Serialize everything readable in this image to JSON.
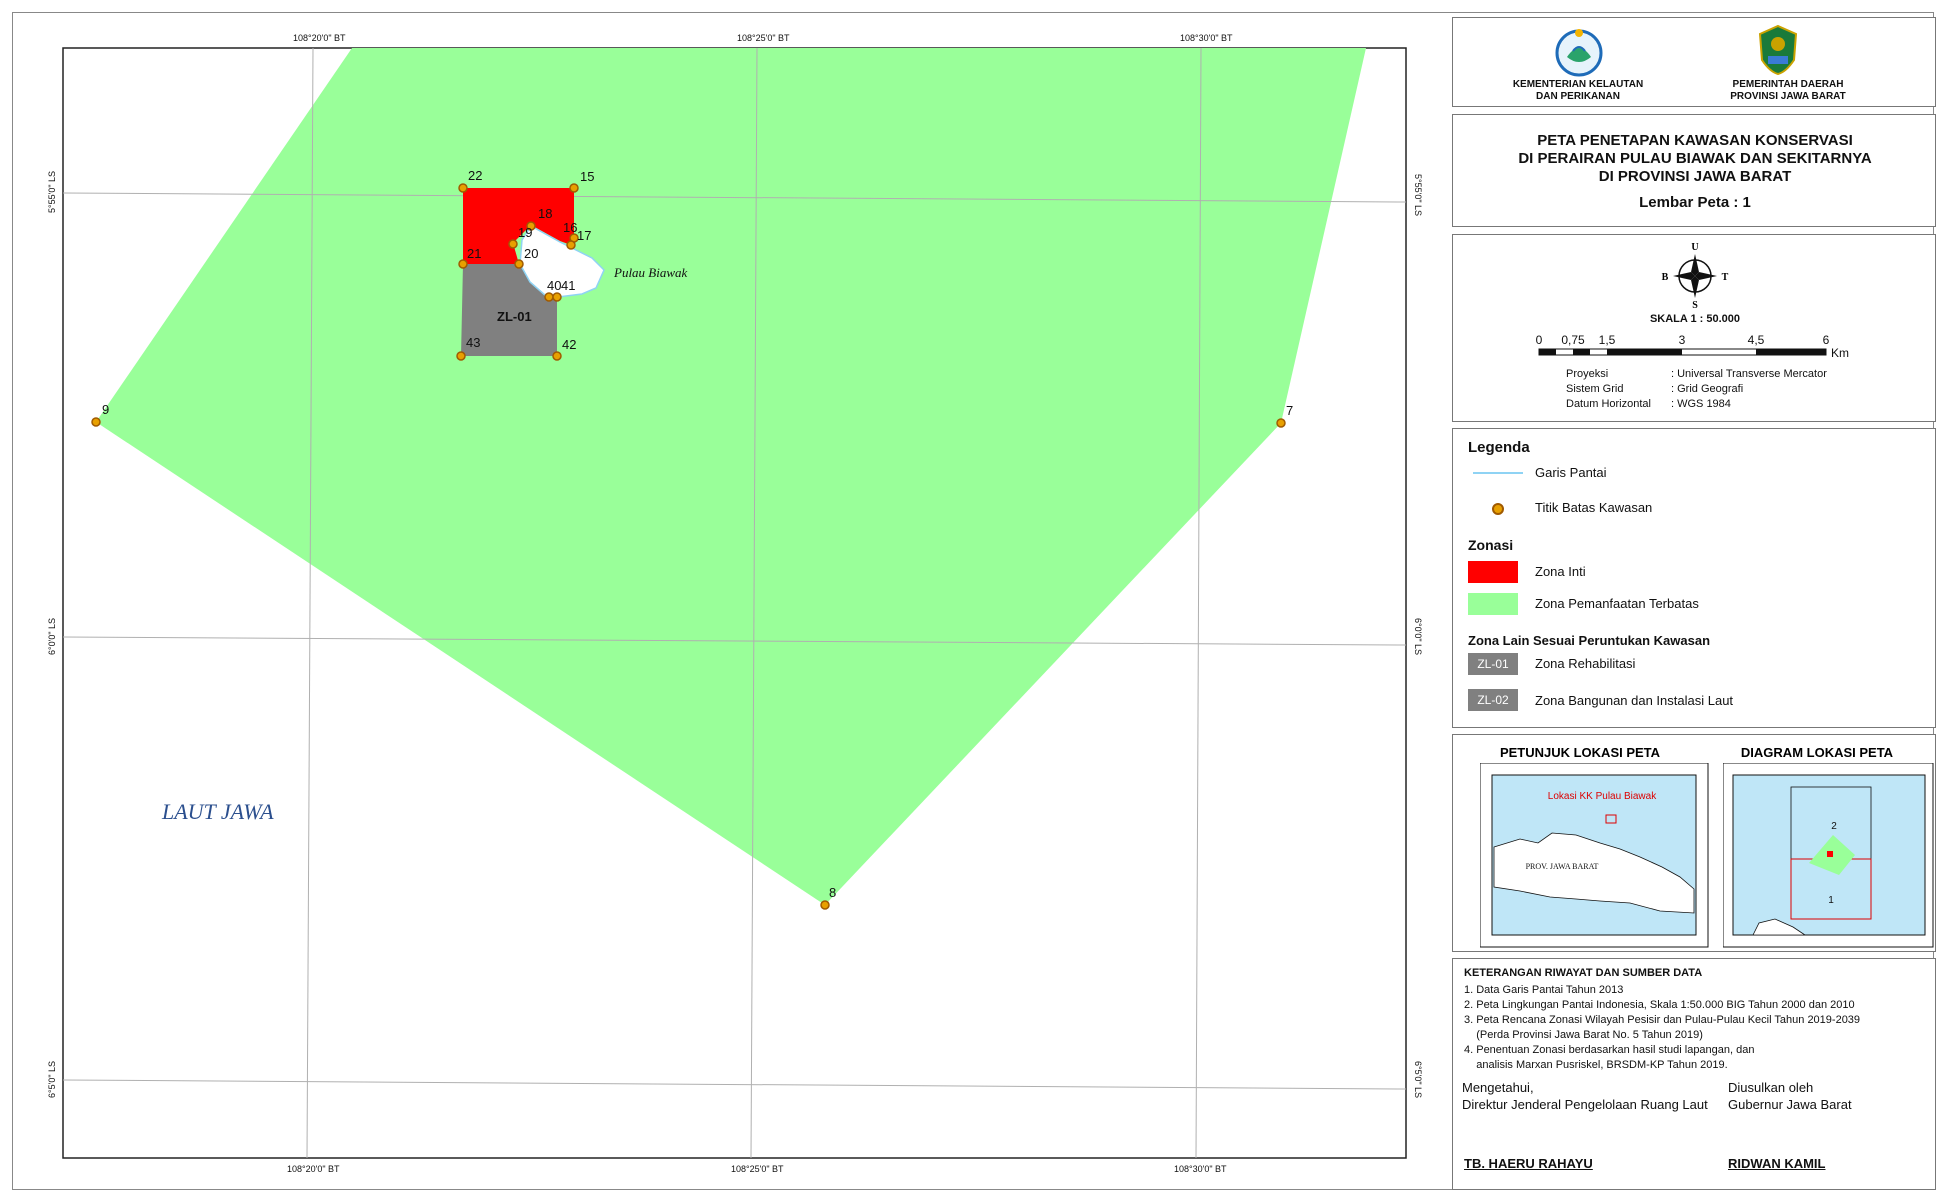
{
  "map": {
    "lon_labels": [
      "108°20'0\" BT",
      "108°25'0\" BT",
      "108°30'0\" BT"
    ],
    "lat_labels": [
      "5°55'0\" LS",
      "6°0'0\" LS",
      "6°5'0\" LS"
    ],
    "sea_label": "LAUT JAWA",
    "island_label": "Pulau Biawak",
    "zone_label": "ZL-01",
    "points": [
      {
        "id": "22"
      },
      {
        "id": "15"
      },
      {
        "id": "18"
      },
      {
        "id": "16"
      },
      {
        "id": "17"
      },
      {
        "id": "19"
      },
      {
        "id": "20"
      },
      {
        "id": "21"
      },
      {
        "id": "40"
      },
      {
        "id": "41"
      },
      {
        "id": "43"
      },
      {
        "id": "42"
      },
      {
        "id": "9"
      },
      {
        "id": "7"
      },
      {
        "id": "8"
      }
    ],
    "colors": {
      "inti": "#ff0000",
      "pemanfaatan": "#99ff99",
      "rehab": "#808080",
      "coast": "#8fd3f4",
      "point": "#e8a000"
    }
  },
  "header": {
    "logo_left_line1": "KEMENTERIAN KELAUTAN",
    "logo_left_line2": "DAN PERIKANAN",
    "logo_right_line1": "PEMERINTAH DAERAH",
    "logo_right_line2": "PROVINSI JAWA BARAT"
  },
  "title": {
    "line1": "PETA PENETAPAN KAWASAN KONSERVASI",
    "line2": "DI PERAIRAN PULAU BIAWAK DAN SEKITARNYA",
    "line3": "DI PROVINSI JAWA BARAT",
    "sheet": "Lembar Peta : 1"
  },
  "scale": {
    "compass": {
      "n": "U",
      "s": "S",
      "e": "T",
      "w": "B"
    },
    "scale_text": "SKALA 1 : 50.000",
    "ticks": [
      "0",
      "0,75",
      "1,5",
      "3",
      "4,5",
      "6"
    ],
    "unit": "Km",
    "proj_rows": [
      {
        "k": "Proyeksi",
        "v": ": Universal Transverse Mercator"
      },
      {
        "k": "Sistem Grid",
        "v": ": Grid Geografi"
      },
      {
        "k": "Datum Horizontal",
        "v": ": WGS 1984"
      }
    ]
  },
  "legend": {
    "title": "Legenda",
    "coast": "Garis Pantai",
    "point": "Titik Batas Kawasan",
    "zonasi_title": "Zonasi",
    "zona_inti": "Zona Inti",
    "zona_pemanfaatan": "Zona Pemanfaatan Terbatas",
    "zona_lain_title": "Zona Lain Sesuai Peruntukan Kawasan",
    "zl01_code": "ZL-01",
    "zl01_label": "Zona Rehabilitasi",
    "zl02_code": "ZL-02",
    "zl02_label": "Zona Bangunan dan Instalasi Laut"
  },
  "inset": {
    "petunjuk_title": "PETUNJUK LOKASI PETA",
    "diagram_title": "DIAGRAM LOKASI PETA",
    "lokasi_label": "Lokasi KK Pulau Biawak",
    "prov_label": "PROV. JAWA BARAT",
    "sheet1": "1",
    "sheet2": "2"
  },
  "ket": {
    "title": "KETERANGAN RIWAYAT DAN SUMBER DATA",
    "lines": [
      "1. Data Garis Pantai Tahun 2013",
      "2. Peta Lingkungan Pantai Indonesia, Skala 1:50.000 BIG Tahun 2000 dan 2010",
      "3. Peta Rencana Zonasi Wilayah Pesisir dan Pulau-Pulau Kecil Tahun 2019-2039",
      "    (Perda Provinsi Jawa Barat No. 5 Tahun 2019)",
      "4. Penentuan Zonasi berdasarkan hasil studi lapangan, dan",
      "    analisis Marxan Pusriskel, BRSDM-KP Tahun 2019."
    ],
    "mengetahui": "Mengetahui,",
    "direktur": "Direktur Jenderal Pengelolaan Ruang Laut",
    "diusulkan": "Diusulkan oleh",
    "gubernur": "Gubernur Jawa Barat",
    "sign_left": "TB. HAERU RAHAYU",
    "sign_right": "RIDWAN KAMIL"
  }
}
